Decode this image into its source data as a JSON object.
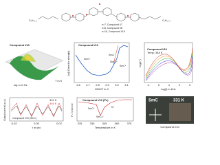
{
  "structure": {
    "labels": [
      "n=7, Compound I/7",
      "n=8, Compound I/8",
      "n=10, Compound I/10"
    ],
    "left_chain": "CₙH₂ₙ₊₁",
    "right_chain": "CₙH₂ₙ₊₁"
  },
  "panels": [
    {
      "title": "Compound I/10",
      "x_label": "log ω in Hz",
      "y_label": "T in K"
    },
    {
      "title": "Compound I/10",
      "y_label": "Δε∥ (Dielectric strength)",
      "x_label": "1000/T in K",
      "xticks": [
        "2.6",
        "2.7",
        "2.8",
        "2.9",
        "3.0",
        "3.1"
      ],
      "annotations": [
        "SmC*",
        "SmA",
        "SmCₐ*",
        "SmC*"
      ]
    },
    {
      "title": "Compound I/10",
      "subtitle": "Temp: 348 K",
      "y_label": "log(ε'')",
      "x_label": "log(f) in kHz",
      "xticks": [
        "-1",
        "0",
        "1",
        "2",
        "3"
      ]
    },
    {
      "y_label": "Output current (a.u.)",
      "x_label": "t in sec",
      "xticks": [
        "-0.02",
        "0.00",
        "0.02"
      ],
      "legend": [
        "331 K",
        "346 K"
      ],
      "caption": "Compound I/10 (SmC)"
    },
    {
      "title": "Compound I/10 (Ps)",
      "y_label": "Pₛ in nC/cm²",
      "x_label": "Temperature in K",
      "xticks": [
        "315",
        "330",
        "345",
        "360",
        "375"
      ],
      "annotations": [
        "SmC*",
        "SmCₐ*",
        "N*"
      ]
    },
    {
      "overlay": [
        "SmC",
        "331 K"
      ],
      "caption": "Compound I/10"
    }
  ]
}
